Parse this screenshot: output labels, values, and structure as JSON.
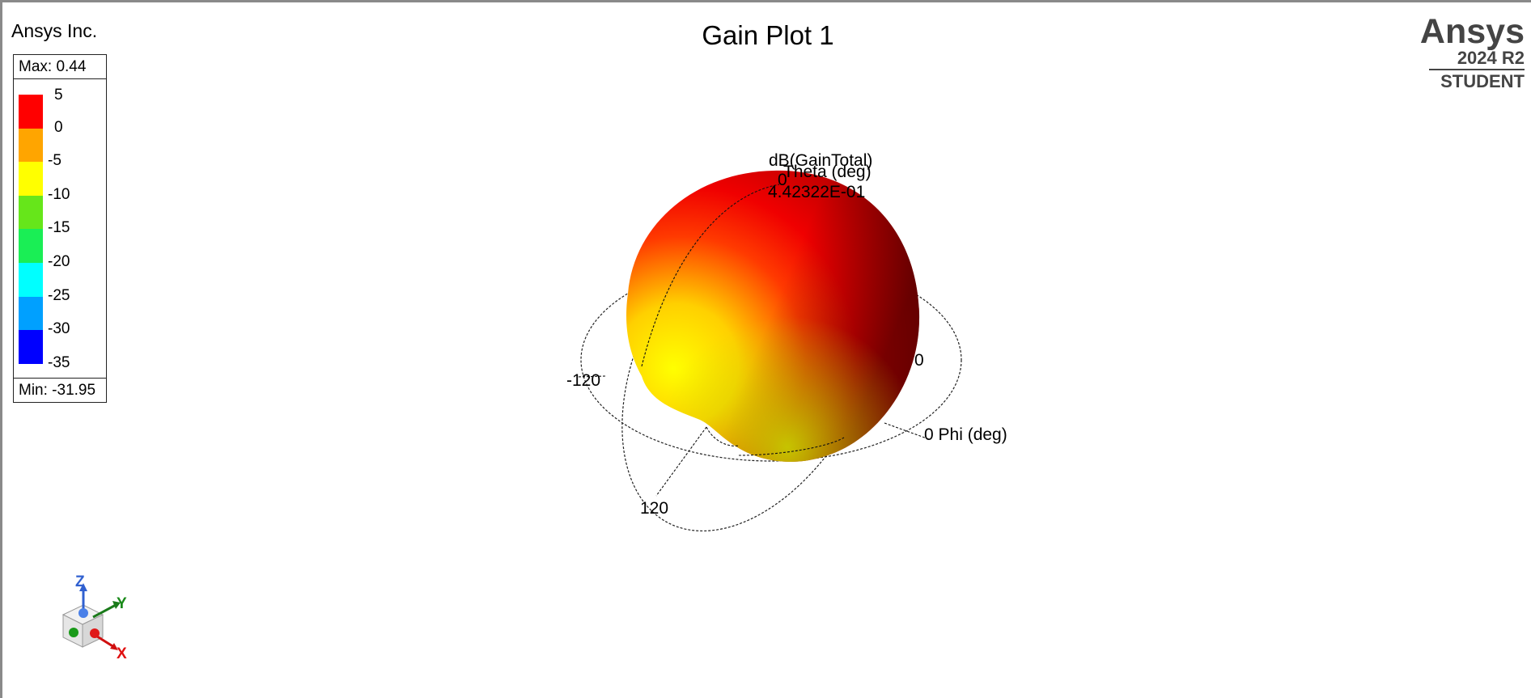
{
  "header": {
    "company": "Ansys Inc.",
    "plot_title": "Gain Plot 1",
    "brand": {
      "name": "Ansys",
      "version": "2024 R2",
      "edition": "STUDENT"
    }
  },
  "legend": {
    "max_label": "Max: 0.44",
    "min_label": "Min: -31.95",
    "ticks": [
      "5",
      "0",
      "-5",
      "-10",
      "-15",
      "-20",
      "-25",
      "-30",
      "-35"
    ],
    "colors": [
      "#ff0000",
      "#ffa500",
      "#ffff00",
      "#66e61a",
      "#1aee55",
      "#00ffff",
      "#00a0ff",
      "#0000ff"
    ]
  },
  "plot": {
    "quantity_label": "dB(GainTotal)",
    "theta_label": "Theta (deg)",
    "theta_zero": "0",
    "max_value_label": "4.42322E-01",
    "phi_axis_label": "0 Phi (deg)",
    "tick_neg120": "-120",
    "tick_120": "120",
    "tick_right_0": "0"
  },
  "triad": {
    "z": "Z",
    "y": "Y",
    "x": "X"
  }
}
